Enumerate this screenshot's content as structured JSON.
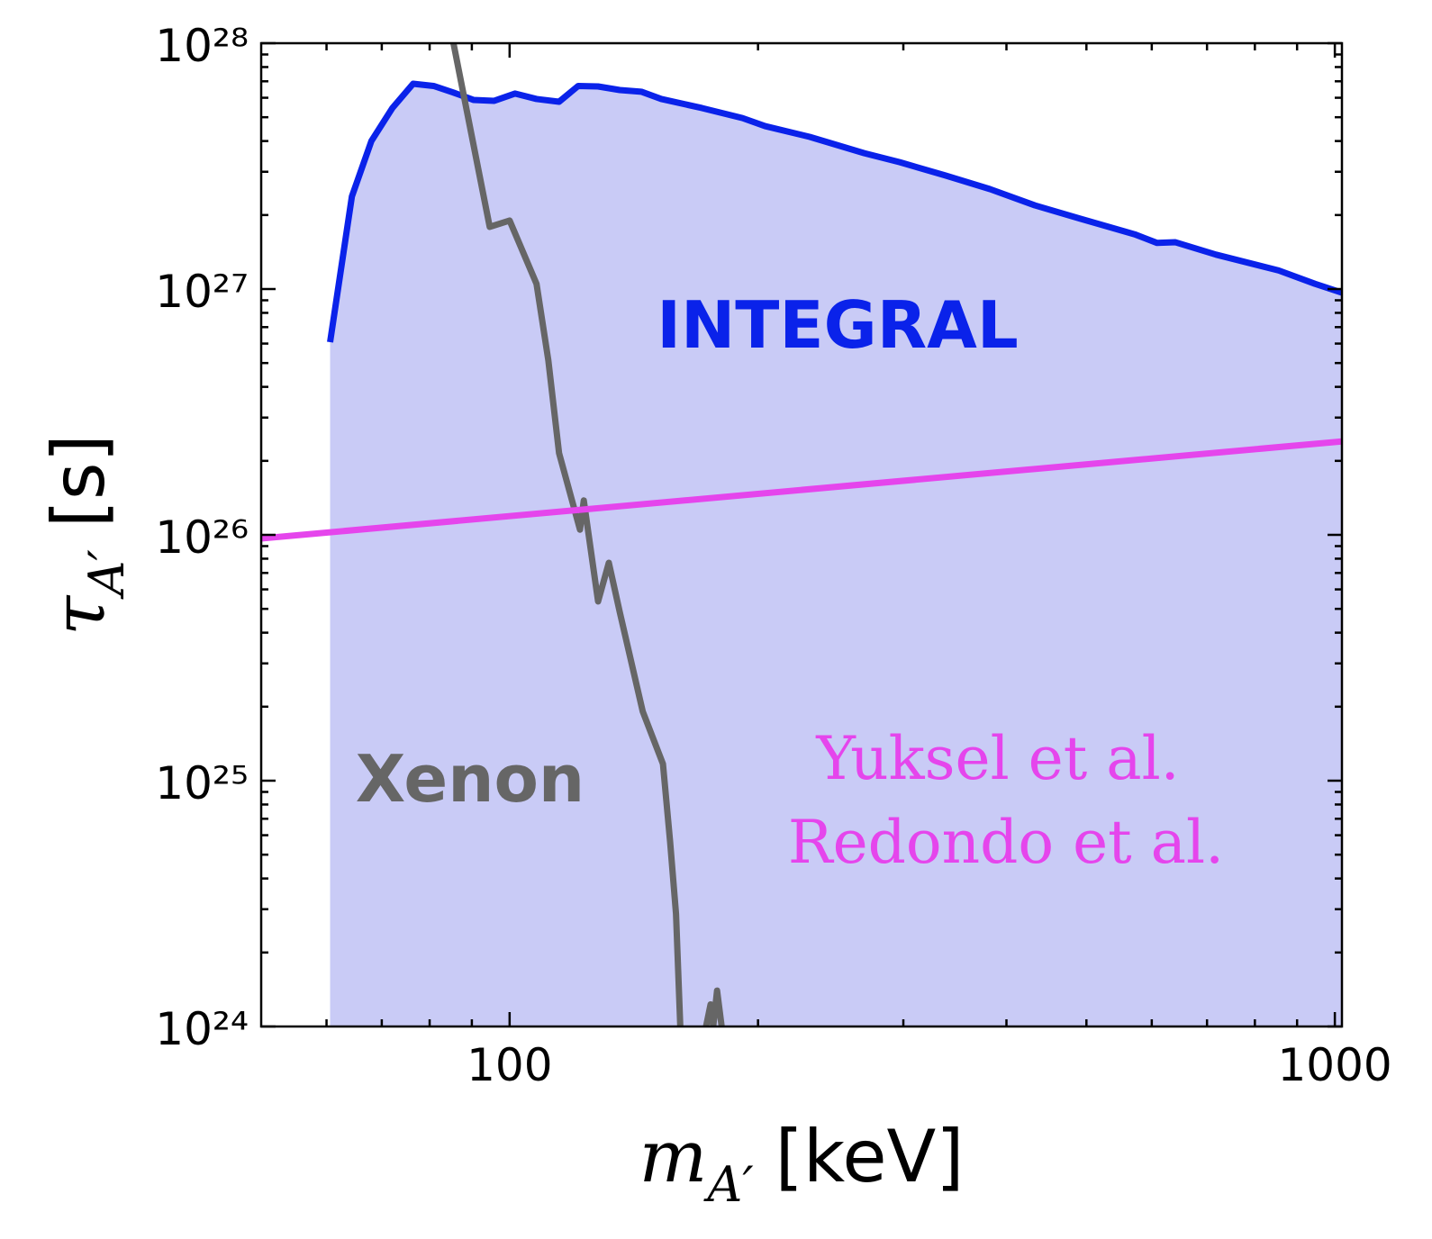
{
  "chart_data": {
    "type": "line",
    "xlabel": {
      "symbol": "m",
      "subscript": "A′",
      "unit": "[keV]"
    },
    "ylabel": {
      "symbol": "τ",
      "subscript": "A′",
      "unit": "[s]"
    },
    "xscale": "log",
    "yscale": "log",
    "xlim": [
      50,
      1020
    ],
    "ylim": [
      1e+24,
      1e+28
    ],
    "xticks": [
      100,
      1000
    ],
    "xminorticks": [
      60,
      70,
      80,
      90,
      200,
      300,
      400,
      500,
      600,
      700,
      800,
      900
    ],
    "yticks": [
      {
        "value": 1e+24,
        "label": "10²⁴"
      },
      {
        "value": 1e+25,
        "label": "10²⁵"
      },
      {
        "value": 1e+26,
        "label": "10²⁶"
      },
      {
        "value": 1e+27,
        "label": "10²⁷"
      },
      {
        "value": 1e+28,
        "label": "10²⁸"
      }
    ],
    "yminorticks": [
      2e+24,
      3e+24,
      4e+24,
      5e+24,
      6e+24,
      7e+24,
      8e+24,
      9e+24,
      2e+25,
      3e+25,
      4e+25,
      5e+25,
      6e+25,
      7e+25,
      8e+25,
      9e+25,
      2e+26,
      3e+26,
      4e+26,
      5e+26,
      6e+26,
      7e+26,
      8e+26,
      9e+26,
      2e+27,
      3e+27,
      4e+27,
      5e+27,
      6e+27,
      7e+27,
      8e+27,
      9e+27
    ],
    "grid": false,
    "annotations": [
      {
        "text": "INTEGRAL",
        "color": "#0a22ea"
      },
      {
        "text": "Xenon",
        "color": "#666666"
      },
      {
        "text": "Yuksel et al.",
        "color": "#e545ec"
      },
      {
        "text": "Redondo et al.",
        "color": "#e545ec"
      }
    ],
    "series": [
      {
        "color": "#0a22ea",
        "fill": "#c9cbf6",
        "x": [
          60.6,
          64.4,
          68.0,
          72.1,
          76.4,
          80.9,
          85.5,
          90.4,
          95.8,
          101.5,
          107.8,
          114.8,
          121.1,
          128,
          136,
          144.4,
          152.7,
          171,
          191.5,
          204,
          231,
          269,
          297,
          337,
          382,
          433,
          492,
          572,
          609,
          641,
          718,
          855,
          946,
          1020
        ],
        "values": [
          6.08e+26,
          2.38e+27,
          4e+27,
          5.45e+27,
          6.84e+27,
          6.7e+27,
          6.3e+27,
          5.88e+27,
          5.83e+27,
          6.24e+27,
          5.93e+27,
          5.78e+27,
          6.7e+27,
          6.67e+27,
          6.45e+27,
          6.35e+27,
          5.93e+27,
          5.45e+27,
          4.96e+27,
          4.6e+27,
          4.16e+27,
          3.57e+27,
          3.28e+27,
          2.9e+27,
          2.55e+27,
          2.19e+27,
          1.93e+27,
          1.67e+27,
          1.54e+27,
          1.55e+27,
          1.38e+27,
          1.19e+27,
          1.05e+27,
          9.66e+26
        ]
      },
      {
        "color": "#666666",
        "x": [
          85.5,
          94.6,
          100,
          107.8,
          111.4,
          114.8,
          121.7,
          123,
          128,
          131.9,
          136,
          145,
          153.4,
          156.5,
          159.1,
          161,
          null,
          173,
          175.2,
          176.5,
          178.4,
          180.7
        ],
        "values": [
          1e+28,
          1.79e+27,
          1.9e+27,
          1.05e+27,
          5.14e+26,
          2.15e+26,
          1.05e+26,
          1.38e+26,
          5.36e+25,
          7.7e+25,
          4.84e+25,
          1.91e+25,
          1.17e+25,
          5.64e+24,
          2.87e+24,
          1e+24,
          null,
          1e+24,
          1.23e+24,
          1e+24,
          1.4e+24,
          1e+24
        ]
      },
      {
        "color": "#e545ec",
        "x": [
          50,
          1020
        ],
        "values": [
          9.67e+25,
          2.4e+26
        ]
      }
    ]
  }
}
